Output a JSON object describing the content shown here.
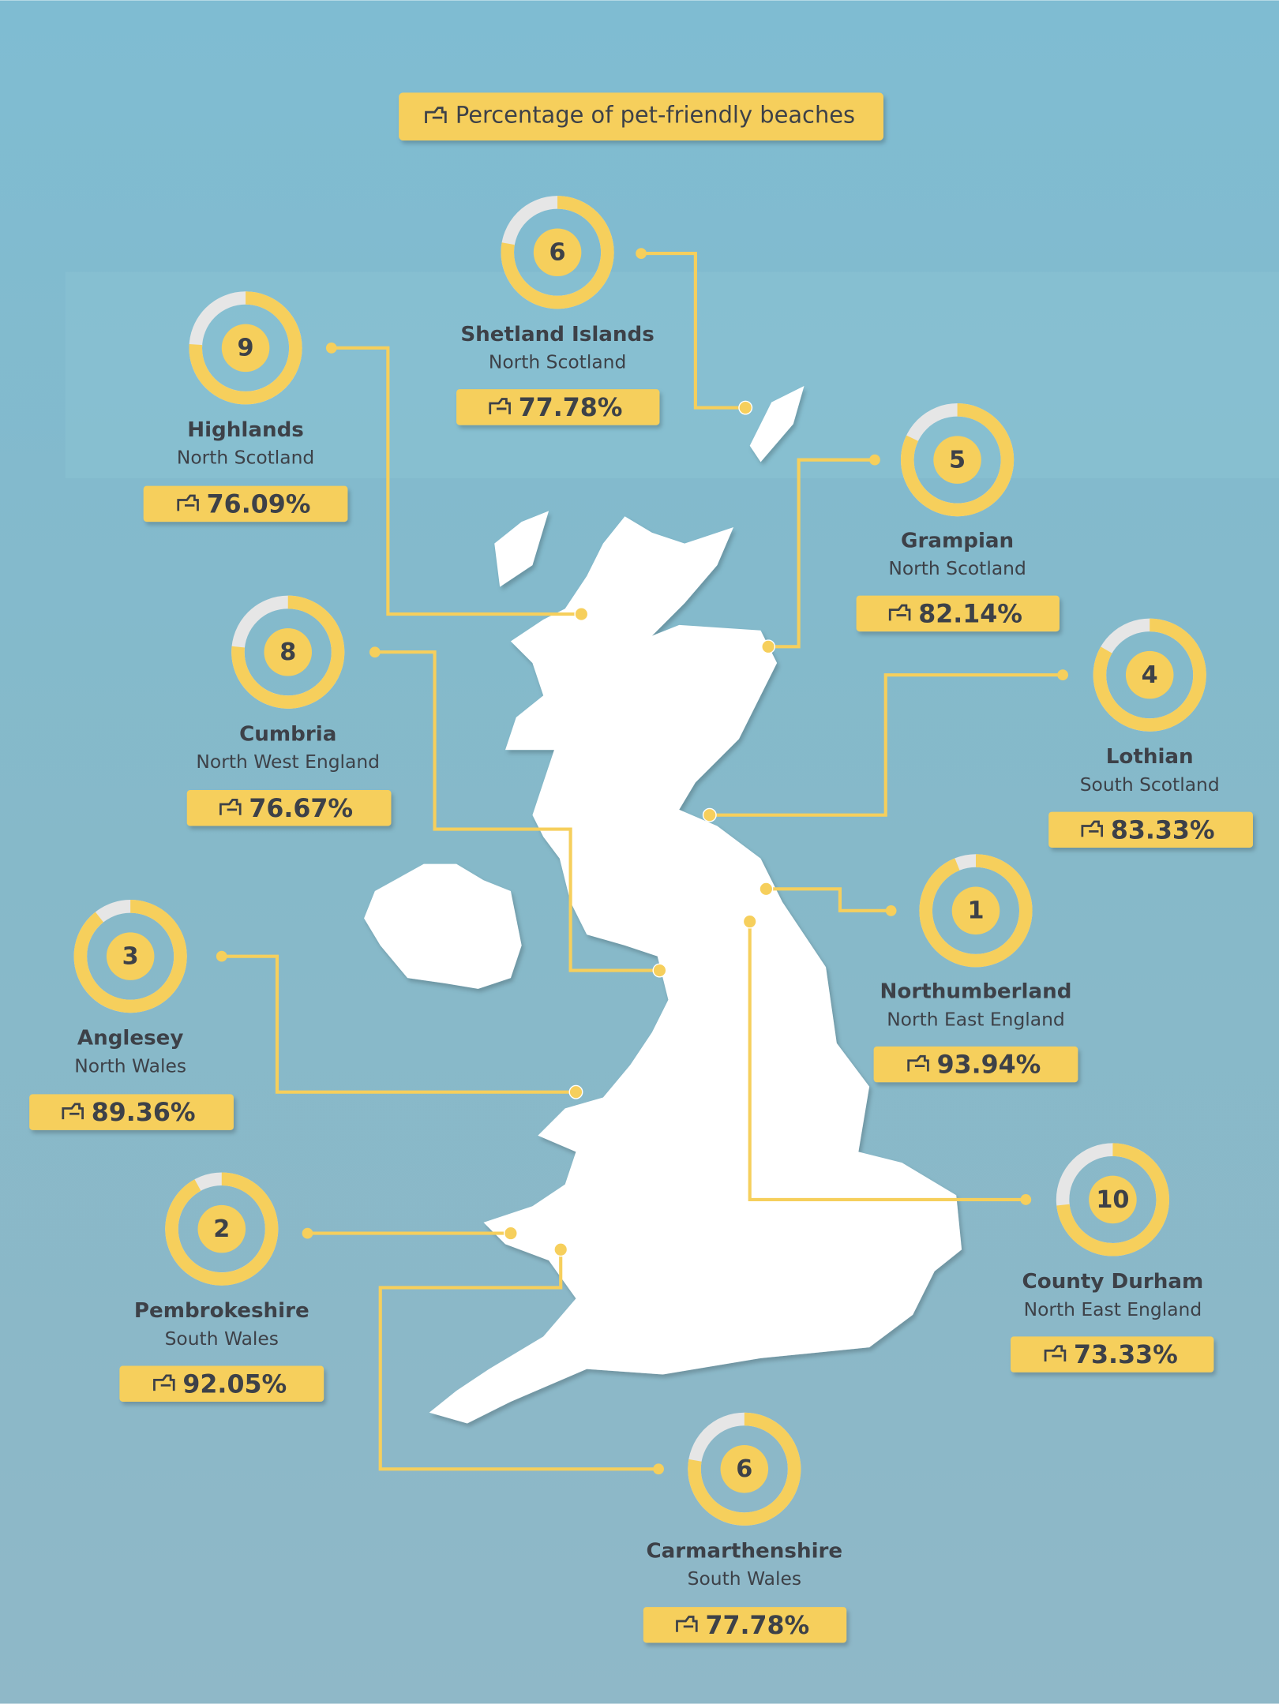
{
  "title": "Percentage of pet-friendly beaches",
  "regions": [
    {
      "rank": 6,
      "name": "Shetland Islands",
      "area": "North Scotland",
      "value": 77.78,
      "value_label": "77.78%"
    },
    {
      "rank": 9,
      "name": "Highlands",
      "area": "North Scotland",
      "value": 76.09,
      "value_label": "76.09%"
    },
    {
      "rank": 5,
      "name": "Grampian",
      "area": "North Scotland",
      "value": 82.14,
      "value_label": "82.14%"
    },
    {
      "rank": 8,
      "name": "Cumbria",
      "area": "North West England",
      "value": 76.67,
      "value_label": "76.67%"
    },
    {
      "rank": 4,
      "name": "Lothian",
      "area": "South Scotland",
      "value": 83.33,
      "value_label": "83.33%"
    },
    {
      "rank": 1,
      "name": "Northumberland",
      "area": "North East England",
      "value": 93.94,
      "value_label": "93.94%"
    },
    {
      "rank": 3,
      "name": "Anglesey",
      "area": "North Wales",
      "value": 89.36,
      "value_label": "89.36%"
    },
    {
      "rank": 10,
      "name": "County Durham",
      "area": "North East England",
      "value": 73.33,
      "value_label": "73.33%"
    },
    {
      "rank": 2,
      "name": "Pembrokeshire",
      "area": "South Wales",
      "value": 92.05,
      "value_label": "92.05%"
    },
    {
      "rank": 6,
      "name": "Carmarthenshire",
      "area": "South Wales",
      "value": 77.78,
      "value_label": "77.78%"
    }
  ]
}
